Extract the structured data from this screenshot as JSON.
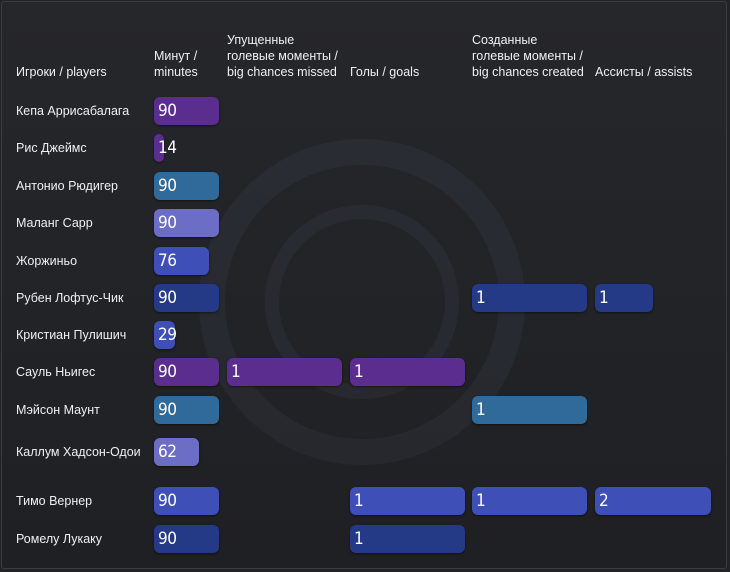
{
  "chart_data": {
    "type": "table",
    "columns": [
      {
        "key": "player",
        "label": "Игроки / players"
      },
      {
        "key": "minutes",
        "label": "Минут / minutes"
      },
      {
        "key": "big_chances_missed",
        "label": "Упущенные голевые моменты / big chances missed"
      },
      {
        "key": "goals",
        "label": "Голы / goals"
      },
      {
        "key": "big_chances_created",
        "label": "Созданные голевые моменты / big chances created"
      },
      {
        "key": "assists",
        "label": "Ассисты / assists"
      }
    ],
    "rows": [
      {
        "player": "Кепа Аррисабалага",
        "minutes": 90,
        "big_chances_missed": null,
        "goals": null,
        "big_chances_created": null,
        "assists": null,
        "color": "#5b2d8f"
      },
      {
        "player": "Рис Джеймс",
        "minutes": 14,
        "big_chances_missed": null,
        "goals": null,
        "big_chances_created": null,
        "assists": null,
        "color": "#5b2d8f"
      },
      {
        "player": "Антонио Рюдигер",
        "minutes": 90,
        "big_chances_missed": null,
        "goals": null,
        "big_chances_created": null,
        "assists": null,
        "color": "#2f6a9a"
      },
      {
        "player": "Маланг Сарр",
        "minutes": 90,
        "big_chances_missed": null,
        "goals": null,
        "big_chances_created": null,
        "assists": null,
        "color": "#6b6ec4"
      },
      {
        "player": "Жоржиньо",
        "minutes": 76,
        "big_chances_missed": null,
        "goals": null,
        "big_chances_created": null,
        "assists": null,
        "color": "#3e4fb8"
      },
      {
        "player": "Рубен Лофтус-Чик",
        "minutes": 90,
        "big_chances_missed": null,
        "goals": null,
        "big_chances_created": 1,
        "assists": 1,
        "color": "#243a86"
      },
      {
        "player": "Кристиан Пулишич",
        "minutes": 29,
        "big_chances_missed": null,
        "goals": null,
        "big_chances_created": null,
        "assists": null,
        "color": "#3e4fb8"
      },
      {
        "player": "Сауль Ньигес",
        "minutes": 90,
        "big_chances_missed": 1,
        "goals": 1,
        "big_chances_created": null,
        "assists": null,
        "color": "#5b2d8f"
      },
      {
        "player": "Мэйсон Маунт",
        "minutes": 90,
        "big_chances_missed": null,
        "goals": null,
        "big_chances_created": 1,
        "assists": null,
        "color": "#2f6a9a"
      },
      {
        "player": "Каллум Хадсон-Одои",
        "minutes": 62,
        "big_chances_missed": null,
        "goals": null,
        "big_chances_created": null,
        "assists": null,
        "color": "#6b6ec4"
      },
      {
        "player": "Тимо Вернер",
        "minutes": 90,
        "big_chances_missed": null,
        "goals": 1,
        "big_chances_created": 1,
        "assists": 2,
        "color": "#3e4fb8"
      },
      {
        "player": "Ромелу Лукаку",
        "minutes": 90,
        "big_chances_missed": null,
        "goals": 1,
        "big_chances_created": null,
        "assists": null,
        "color": "#243a86"
      }
    ],
    "scales": {
      "minutes": 90,
      "big_chances_missed": 1,
      "goals": 1,
      "big_chances_created": 1,
      "assists": 2
    }
  }
}
